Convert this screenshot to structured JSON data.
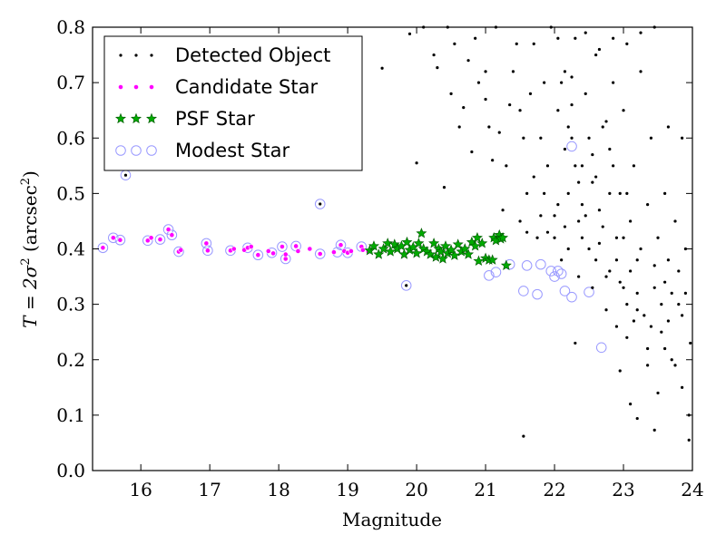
{
  "chart_data": {
    "type": "scatter",
    "xlabel": "Magnitude",
    "ylabel_parts": [
      "T = 2",
      "σ",
      "2",
      " (arcsec",
      "2",
      ")"
    ],
    "xlim": [
      15.3,
      24.0
    ],
    "ylim": [
      0.0,
      0.8
    ],
    "x_ticks": [
      16,
      17,
      18,
      19,
      20,
      21,
      22,
      23,
      24
    ],
    "x_tick_labels": [
      "16",
      "17",
      "18",
      "19",
      "20",
      "21",
      "22",
      "23",
      "24"
    ],
    "y_ticks": [
      0.0,
      0.1,
      0.2,
      0.3,
      0.4,
      0.5,
      0.6,
      0.7,
      0.8
    ],
    "y_tick_labels": [
      "0.0",
      "0.1",
      "0.2",
      "0.3",
      "0.4",
      "0.5",
      "0.6",
      "0.7",
      "0.8"
    ],
    "grid": false,
    "legend_position": "top-left",
    "series": [
      {
        "name": "Detected Object",
        "marker": "dot",
        "color": "#000000",
        "points": [
          [
            15.78,
            0.533
          ],
          [
            18.6,
            0.481
          ],
          [
            19.85,
            0.334
          ],
          [
            19.1,
            0.683
          ],
          [
            19.5,
            0.726
          ],
          [
            19.9,
            0.788
          ],
          [
            20.0,
            0.555
          ],
          [
            20.3,
            0.727
          ],
          [
            20.4,
            0.511
          ],
          [
            20.55,
            0.77
          ],
          [
            20.68,
            0.655
          ],
          [
            20.8,
            0.575
          ],
          [
            20.9,
            0.7
          ],
          [
            21.05,
            0.62
          ],
          [
            21.15,
            0.8
          ],
          [
            21.3,
            0.55
          ],
          [
            21.4,
            0.72
          ],
          [
            21.5,
            0.65
          ],
          [
            21.6,
            0.5
          ],
          [
            21.7,
            0.77
          ],
          [
            21.75,
            0.42
          ],
          [
            21.8,
            0.6
          ],
          [
            21.85,
            0.7
          ],
          [
            21.9,
            0.55
          ],
          [
            21.95,
            0.8
          ],
          [
            22.0,
            0.46
          ],
          [
            22.05,
            0.65
          ],
          [
            22.1,
            0.38
          ],
          [
            22.15,
            0.72
          ],
          [
            22.2,
            0.5
          ],
          [
            22.25,
            0.6
          ],
          [
            22.3,
            0.78
          ],
          [
            22.35,
            0.45
          ],
          [
            22.4,
            0.55
          ],
          [
            22.45,
            0.68
          ],
          [
            22.5,
            0.4
          ],
          [
            22.55,
            0.52
          ],
          [
            22.6,
            0.75
          ],
          [
            22.65,
            0.47
          ],
          [
            22.7,
            0.62
          ],
          [
            22.75,
            0.35
          ],
          [
            22.8,
            0.58
          ],
          [
            22.85,
            0.7
          ],
          [
            22.9,
            0.42
          ],
          [
            22.95,
            0.5
          ],
          [
            23.0,
            0.65
          ],
          [
            23.05,
            0.3
          ],
          [
            23.1,
            0.45
          ],
          [
            23.15,
            0.55
          ],
          [
            23.2,
            0.38
          ],
          [
            23.25,
            0.72
          ],
          [
            23.3,
            0.28
          ],
          [
            23.35,
            0.48
          ],
          [
            23.4,
            0.6
          ],
          [
            23.45,
            0.33
          ],
          [
            23.5,
            0.42
          ],
          [
            23.55,
            0.25
          ],
          [
            23.6,
            0.5
          ],
          [
            23.65,
            0.38
          ],
          [
            23.7,
            0.2
          ],
          [
            23.75,
            0.45
          ],
          [
            23.8,
            0.3
          ],
          [
            23.85,
            0.15
          ],
          [
            23.9,
            0.4
          ],
          [
            23.95,
            0.1
          ],
          [
            23.97,
            0.23
          ],
          [
            21.55,
            0.062
          ],
          [
            23.1,
            0.12
          ],
          [
            23.2,
            0.094
          ],
          [
            23.45,
            0.073
          ],
          [
            23.75,
            0.19
          ],
          [
            23.95,
            0.055
          ],
          [
            22.3,
            0.23
          ],
          [
            22.95,
            0.18
          ],
          [
            23.6,
            0.34
          ],
          [
            23.85,
            0.28
          ],
          [
            22.1,
            0.7
          ],
          [
            22.2,
            0.62
          ],
          [
            22.3,
            0.55
          ],
          [
            22.4,
            0.48
          ],
          [
            22.5,
            0.6
          ],
          [
            22.6,
            0.53
          ],
          [
            22.7,
            0.44
          ],
          [
            22.8,
            0.5
          ],
          [
            22.9,
            0.38
          ],
          [
            23.0,
            0.42
          ],
          [
            23.1,
            0.36
          ],
          [
            23.2,
            0.32
          ],
          [
            22.15,
            0.58
          ],
          [
            22.25,
            0.66
          ],
          [
            22.35,
            0.52
          ],
          [
            22.45,
            0.46
          ],
          [
            22.55,
            0.57
          ],
          [
            22.65,
            0.41
          ],
          [
            22.75,
            0.63
          ],
          [
            22.85,
            0.55
          ],
          [
            22.95,
            0.34
          ],
          [
            23.05,
            0.5
          ],
          [
            23.15,
            0.27
          ],
          [
            23.25,
            0.4
          ],
          [
            23.35,
            0.22
          ],
          [
            23.45,
            0.37
          ],
          [
            23.55,
            0.3
          ],
          [
            23.65,
            0.27
          ],
          [
            23.7,
            0.32
          ],
          [
            23.8,
            0.36
          ],
          [
            20.45,
            0.8
          ],
          [
            20.75,
            0.74
          ],
          [
            21.0,
            0.67
          ],
          [
            21.2,
            0.61
          ],
          [
            21.45,
            0.77
          ],
          [
            21.65,
            0.68
          ],
          [
            21.85,
            0.5
          ],
          [
            22.05,
            0.78
          ],
          [
            22.25,
            0.71
          ],
          [
            22.45,
            0.79
          ],
          [
            22.65,
            0.76
          ],
          [
            22.85,
            0.78
          ],
          [
            23.05,
            0.77
          ],
          [
            23.25,
            0.79
          ],
          [
            23.45,
            0.8
          ],
          [
            23.65,
            0.62
          ],
          [
            23.85,
            0.6
          ],
          [
            21.1,
            0.56
          ],
          [
            21.25,
            0.47
          ],
          [
            21.55,
            0.6
          ],
          [
            21.7,
            0.53
          ],
          [
            21.9,
            0.43
          ],
          [
            22.05,
            0.48
          ],
          [
            22.2,
            0.4
          ],
          [
            22.35,
            0.35
          ],
          [
            22.55,
            0.33
          ],
          [
            22.75,
            0.29
          ],
          [
            22.9,
            0.26
          ],
          [
            23.05,
            0.24
          ],
          [
            23.35,
            0.19
          ],
          [
            23.5,
            0.14
          ],
          [
            20.1,
            0.8
          ],
          [
            20.25,
            0.75
          ],
          [
            20.5,
            0.68
          ],
          [
            20.62,
            0.62
          ],
          [
            20.85,
            0.78
          ],
          [
            21.0,
            0.72
          ],
          [
            21.35,
            0.66
          ],
          [
            21.5,
            0.45
          ],
          [
            21.6,
            0.43
          ],
          [
            21.8,
            0.46
          ],
          [
            22.0,
            0.42
          ],
          [
            22.15,
            0.44
          ],
          [
            22.4,
            0.42
          ],
          [
            22.6,
            0.38
          ],
          [
            22.8,
            0.36
          ],
          [
            23.0,
            0.33
          ],
          [
            23.2,
            0.29
          ],
          [
            23.4,
            0.26
          ],
          [
            23.6,
            0.22
          ],
          [
            23.9,
            0.32
          ]
        ]
      },
      {
        "name": "Candidate Star",
        "marker": "small-circle",
        "color": "#ff00ff",
        "points": [
          [
            15.45,
            0.402
          ],
          [
            15.6,
            0.42
          ],
          [
            15.7,
            0.416
          ],
          [
            16.1,
            0.415
          ],
          [
            16.15,
            0.42
          ],
          [
            16.28,
            0.417
          ],
          [
            16.4,
            0.435
          ],
          [
            16.45,
            0.425
          ],
          [
            16.55,
            0.395
          ],
          [
            16.58,
            0.398
          ],
          [
            16.95,
            0.41
          ],
          [
            16.97,
            0.397
          ],
          [
            17.3,
            0.397
          ],
          [
            17.35,
            0.4
          ],
          [
            17.5,
            0.398
          ],
          [
            17.55,
            0.402
          ],
          [
            17.6,
            0.404
          ],
          [
            17.7,
            0.389
          ],
          [
            17.85,
            0.396
          ],
          [
            17.92,
            0.392
          ],
          [
            18.05,
            0.404
          ],
          [
            18.1,
            0.382
          ],
          [
            18.1,
            0.39
          ],
          [
            18.25,
            0.405
          ],
          [
            18.28,
            0.396
          ],
          [
            18.45,
            0.4
          ],
          [
            18.6,
            0.391
          ],
          [
            18.8,
            0.394
          ],
          [
            18.9,
            0.407
          ],
          [
            18.95,
            0.396
          ],
          [
            19.0,
            0.393
          ],
          [
            19.05,
            0.396
          ],
          [
            19.2,
            0.404
          ],
          [
            19.22,
            0.398
          ],
          [
            19.3,
            0.395
          ]
        ]
      },
      {
        "name": "PSF Star",
        "marker": "star",
        "color": "#00aa00",
        "points": [
          [
            19.32,
            0.397
          ],
          [
            19.38,
            0.405
          ],
          [
            19.45,
            0.39
          ],
          [
            19.52,
            0.4
          ],
          [
            19.58,
            0.41
          ],
          [
            19.62,
            0.395
          ],
          [
            19.68,
            0.408
          ],
          [
            19.72,
            0.4
          ],
          [
            19.78,
            0.405
          ],
          [
            19.82,
            0.39
          ],
          [
            19.86,
            0.412
          ],
          [
            19.9,
            0.398
          ],
          [
            19.95,
            0.403
          ],
          [
            20.0,
            0.392
          ],
          [
            20.03,
            0.41
          ],
          [
            20.07,
            0.428
          ],
          [
            20.1,
            0.4
          ],
          [
            20.15,
            0.395
          ],
          [
            20.2,
            0.39
          ],
          [
            20.25,
            0.41
          ],
          [
            20.28,
            0.385
          ],
          [
            20.32,
            0.4
          ],
          [
            20.35,
            0.395
          ],
          [
            20.38,
            0.382
          ],
          [
            20.42,
            0.405
          ],
          [
            20.45,
            0.392
          ],
          [
            20.5,
            0.398
          ],
          [
            20.55,
            0.388
          ],
          [
            20.6,
            0.408
          ],
          [
            20.65,
            0.395
          ],
          [
            20.7,
            0.4
          ],
          [
            20.75,
            0.39
          ],
          [
            20.8,
            0.412
          ],
          [
            20.85,
            0.405
          ],
          [
            20.88,
            0.42
          ],
          [
            20.9,
            0.378
          ],
          [
            20.95,
            0.41
          ],
          [
            21.0,
            0.383
          ],
          [
            21.05,
            0.38
          ],
          [
            21.1,
            0.38
          ],
          [
            21.12,
            0.42
          ],
          [
            21.15,
            0.415
          ],
          [
            21.2,
            0.425
          ],
          [
            21.22,
            0.418
          ],
          [
            21.25,
            0.42
          ],
          [
            21.3,
            0.37
          ]
        ]
      },
      {
        "name": "Modest Star",
        "marker": "ring",
        "color": "#9999ff",
        "points": [
          [
            15.45,
            0.402
          ],
          [
            15.6,
            0.42
          ],
          [
            15.7,
            0.416
          ],
          [
            15.78,
            0.533
          ],
          [
            16.1,
            0.415
          ],
          [
            16.28,
            0.417
          ],
          [
            16.4,
            0.435
          ],
          [
            16.45,
            0.425
          ],
          [
            16.55,
            0.395
          ],
          [
            16.95,
            0.41
          ],
          [
            16.97,
            0.397
          ],
          [
            17.3,
            0.397
          ],
          [
            17.55,
            0.402
          ],
          [
            17.7,
            0.389
          ],
          [
            17.9,
            0.393
          ],
          [
            18.05,
            0.404
          ],
          [
            18.1,
            0.382
          ],
          [
            18.25,
            0.405
          ],
          [
            18.6,
            0.481
          ],
          [
            18.6,
            0.391
          ],
          [
            18.85,
            0.394
          ],
          [
            18.9,
            0.407
          ],
          [
            19.0,
            0.393
          ],
          [
            19.2,
            0.404
          ],
          [
            19.85,
            0.334
          ],
          [
            21.05,
            0.352
          ],
          [
            21.15,
            0.358
          ],
          [
            21.35,
            0.372
          ],
          [
            21.55,
            0.324
          ],
          [
            21.6,
            0.37
          ],
          [
            21.75,
            0.318
          ],
          [
            21.8,
            0.372
          ],
          [
            21.95,
            0.36
          ],
          [
            22.0,
            0.35
          ],
          [
            22.05,
            0.36
          ],
          [
            22.1,
            0.355
          ],
          [
            22.15,
            0.324
          ],
          [
            22.25,
            0.313
          ],
          [
            22.25,
            0.585
          ],
          [
            22.5,
            0.322
          ],
          [
            22.68,
            0.222
          ]
        ]
      }
    ]
  }
}
